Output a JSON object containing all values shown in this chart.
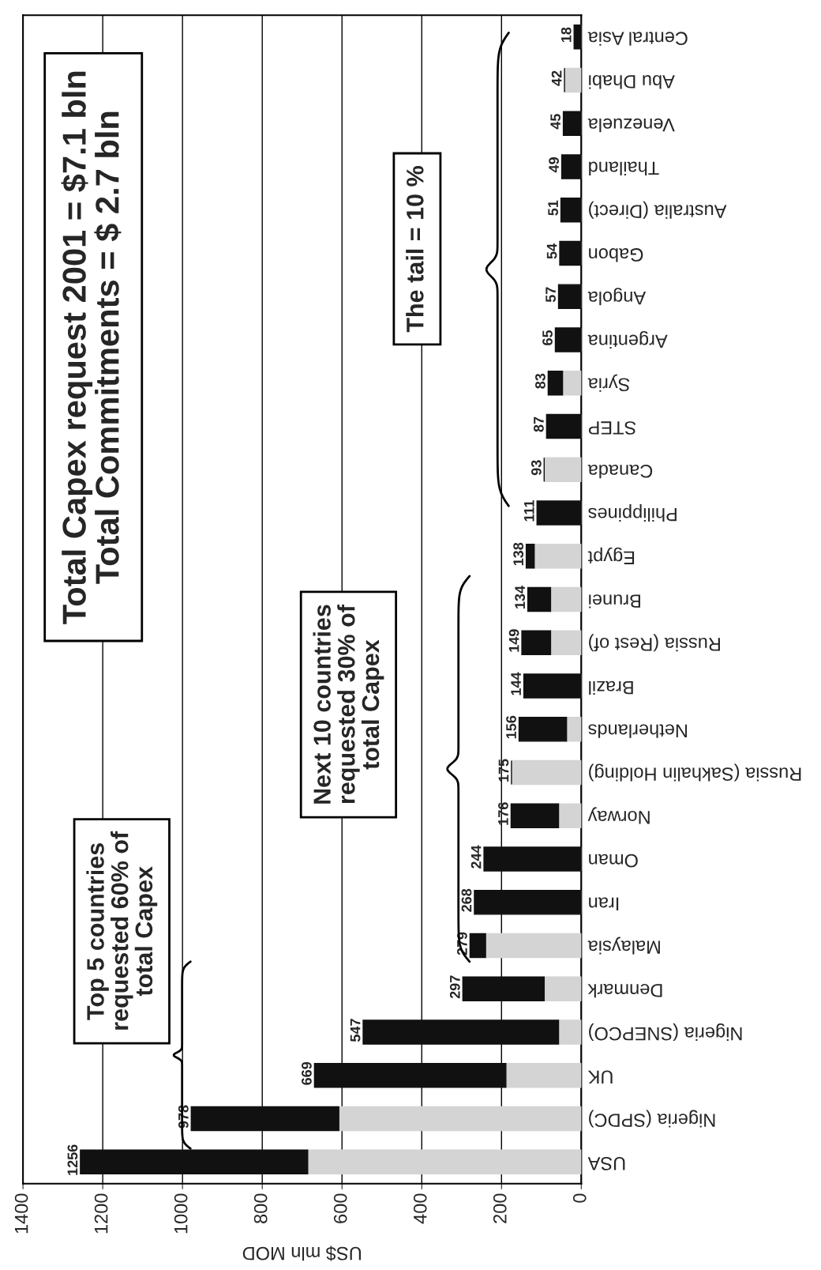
{
  "chart_data": {
    "type": "bar",
    "orientation": "horizontal",
    "stacked": true,
    "categories": [
      "Central Asia",
      "Abu Dhabi",
      "Venezuela",
      "Thailand",
      "Australia (Direct)",
      "Gabon",
      "Angola",
      "Argentina",
      "Syria",
      "STEP",
      "Canada",
      "Philippines",
      "Egypt",
      "Brunei",
      "Russia (Rest of)",
      "Brazil",
      "Netherlands",
      "Russia (Sakhalin Holding)",
      "Norway",
      "Oman",
      "Iran",
      "Malaysia",
      "Denmark",
      "Nigeria (SNEPCO)",
      "UK",
      "Nigeria (SPDC)",
      "USA"
    ],
    "series": [
      {
        "color": "#d4d4d4",
        "values": [
          0,
          42,
          0,
          0,
          0,
          0,
          0,
          0,
          47,
          0,
          93,
          0,
          118,
          77,
          77,
          0,
          37,
          175,
          57,
          0,
          0,
          240,
          93,
          57,
          189,
          608,
          686
        ]
      },
      {
        "color": "#111111",
        "values": [
          18,
          0,
          45,
          49,
          51,
          54,
          57,
          65,
          36,
          87,
          0,
          111,
          20,
          57,
          72,
          144,
          119,
          0,
          119,
          244,
          268,
          39,
          204,
          490,
          480,
          370,
          570
        ]
      }
    ],
    "totals": [
      "18",
      "42",
      "45",
      "49",
      "51",
      "54",
      "57",
      "65",
      "83",
      "87",
      "93",
      "111",
      "138",
      "134",
      "149",
      "144",
      "156",
      "175",
      "176",
      "244",
      "268",
      "279",
      "297",
      "547",
      "669",
      "978",
      "1256"
    ],
    "xlim": [
      1400,
      0
    ],
    "xticks": [
      0,
      200,
      400,
      600,
      800,
      1000,
      1200,
      1400
    ],
    "xlabel": "US$ mln MOD",
    "grid": "x",
    "annotations": [
      "Total Capex request 2001 = $7.1 bln",
      "Total Commitments = $ 2.7 bln",
      "Top 5 countries requested 60% of total Capex",
      "Next 10 countries requested 30% of total Capex",
      "The tail = 10 %"
    ]
  }
}
